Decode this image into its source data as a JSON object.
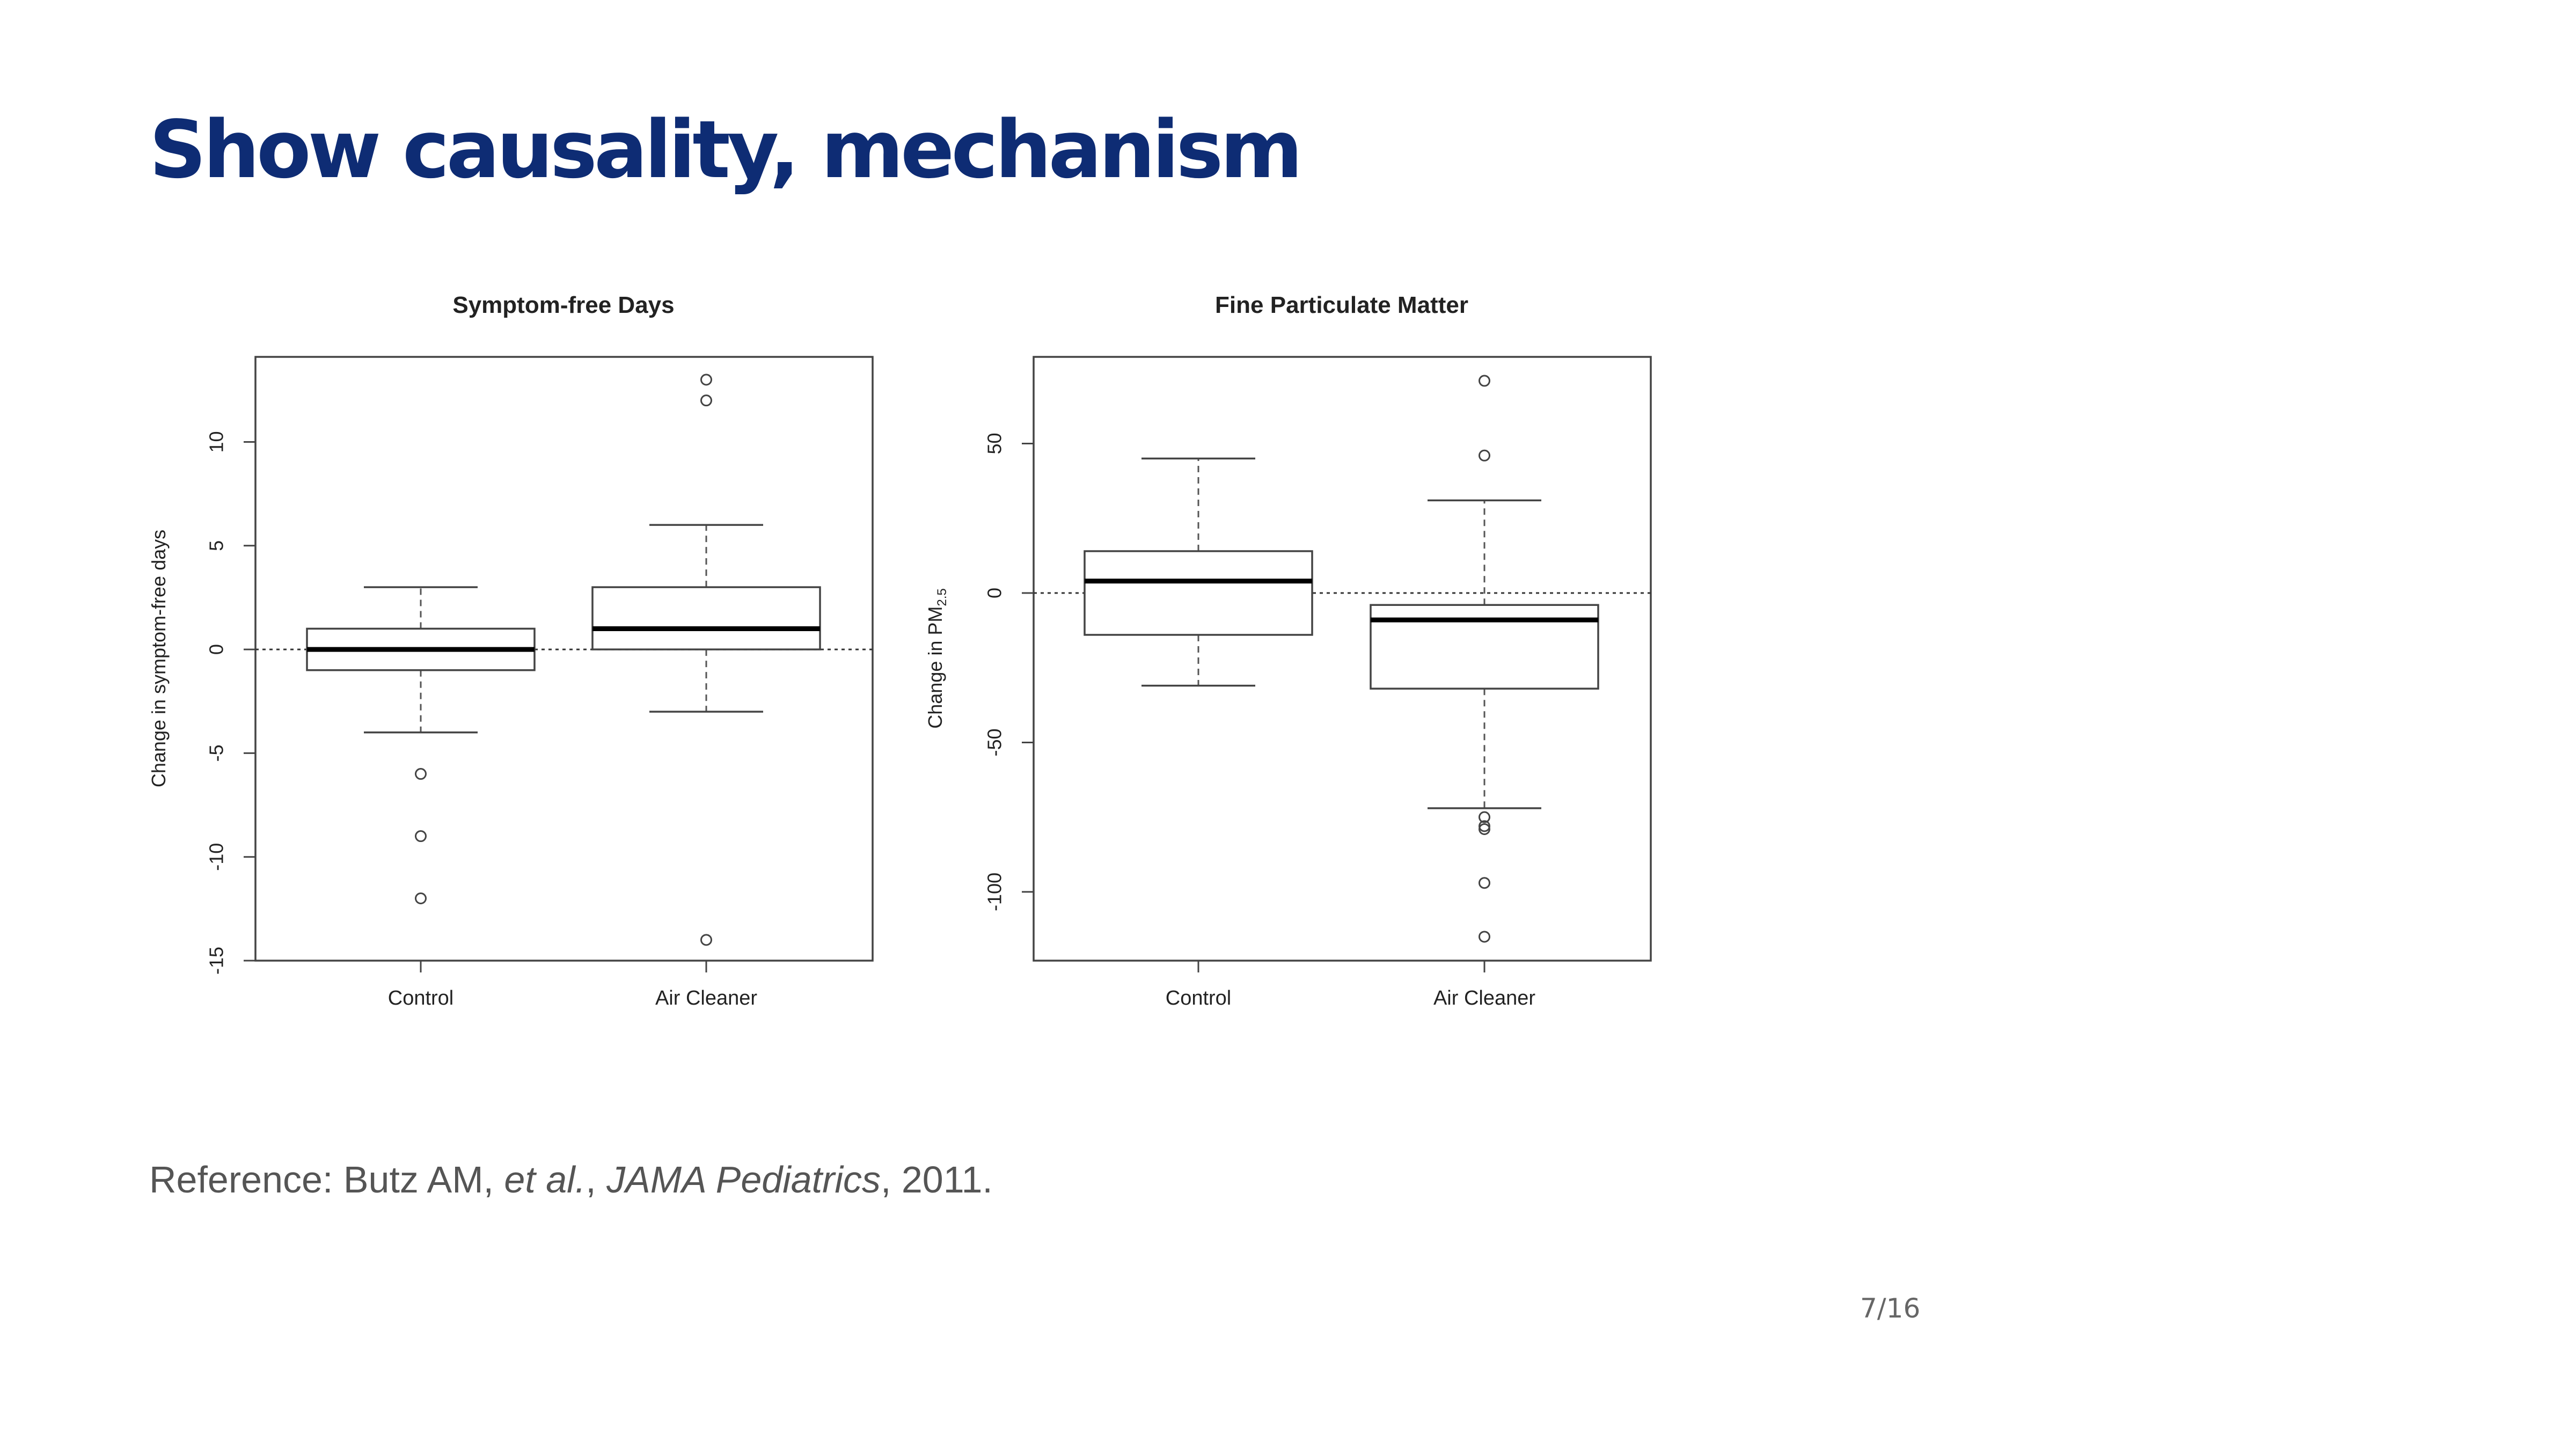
{
  "slide": {
    "title": "Show causality, mechanism",
    "page_number": "7/16"
  },
  "reference": {
    "prefix": "Reference: Butz AM, ",
    "etal": "et al.",
    "sep": ", ",
    "journal": "JAMA Pediatrics",
    "suffix": ", 2011."
  },
  "colors": {
    "title": "#0e2c74",
    "reference_text": "#555555",
    "chart_ink": "#222222"
  },
  "chart_data": [
    {
      "type": "boxplot",
      "title": "Symptom-free Days",
      "ylabel": "Change in symptom-free days",
      "categories": [
        "Control",
        "Air Cleaner"
      ],
      "ylim": [
        -15,
        14.1
      ],
      "yticks": [
        -15,
        -10,
        -5,
        0,
        5,
        10
      ],
      "reference_line": 0,
      "boxes": [
        {
          "category": "Control",
          "whisker_low": -4,
          "q1": -1,
          "median": 0,
          "q3": 1,
          "whisker_high": 3,
          "outliers": [
            -6,
            -9,
            -12
          ]
        },
        {
          "category": "Air Cleaner",
          "whisker_low": -3,
          "q1": 0,
          "median": 1,
          "q3": 3,
          "whisker_high": 6,
          "outliers": [
            13,
            12,
            -14
          ]
        }
      ]
    },
    {
      "type": "boxplot",
      "title": "Fine Particulate Matter",
      "ylabel_main": "Change in PM",
      "ylabel_sub": "2.5",
      "categories": [
        "Control",
        "Air Cleaner"
      ],
      "ylim": [
        -123,
        79
      ],
      "yticks": [
        -100,
        -50,
        0,
        50
      ],
      "reference_line": 0,
      "boxes": [
        {
          "category": "Control",
          "whisker_low": -31,
          "q1": -14,
          "median": 4,
          "q3": 14,
          "whisker_high": 45,
          "outliers": []
        },
        {
          "category": "Air Cleaner",
          "whisker_low": -72,
          "q1": -32,
          "median": -9,
          "q3": -4,
          "whisker_high": 31,
          "outliers": [
            71,
            46,
            -75,
            -78,
            -79,
            -97,
            -115
          ]
        }
      ]
    }
  ]
}
